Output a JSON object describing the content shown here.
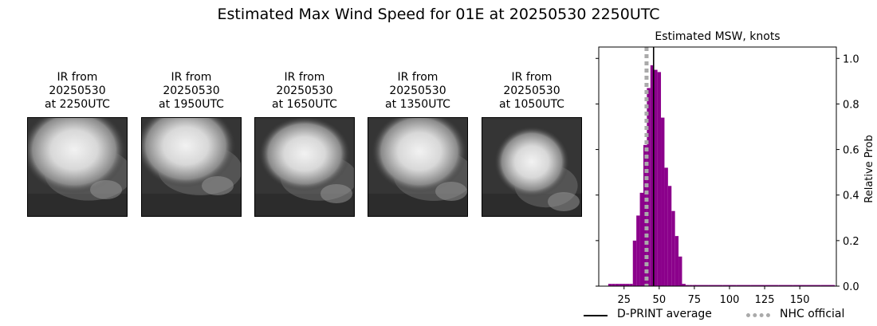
{
  "figure": {
    "title": "Estimated Max Wind Speed for 01E at 20250530 2250UTC"
  },
  "panels": [
    {
      "title": [
        "IR from",
        "20250530",
        "at 2250UTC"
      ],
      "image": "ir-satellite-image"
    },
    {
      "title": [
        "IR from",
        "20250530",
        "at 1950UTC"
      ],
      "image": "ir-satellite-image"
    },
    {
      "title": [
        "IR from",
        "20250530",
        "at 1650UTC"
      ],
      "image": "ir-satellite-image"
    },
    {
      "title": [
        "IR from",
        "20250530",
        "at 1350UTC"
      ],
      "image": "ir-satellite-image"
    },
    {
      "title": [
        "IR from",
        "20250530",
        "at 1050UTC"
      ],
      "image": "ir-satellite-image"
    }
  ],
  "chart_data": {
    "type": "bar",
    "title": "Estimated MSW, knots",
    "xlabel": "",
    "ylabel": "Relative Prob",
    "xlim": [
      7,
      176
    ],
    "ylim": [
      0,
      1.05
    ],
    "xticks": [
      25,
      50,
      75,
      100,
      125,
      150
    ],
    "yticks": [
      0.0,
      0.2,
      0.4,
      0.6,
      0.8,
      1.0
    ],
    "yaxis_side": "right",
    "bin_width": 2.5,
    "bars": {
      "x": [
        15,
        17.5,
        20,
        22.5,
        25,
        27.5,
        30,
        32.5,
        35,
        37.5,
        40,
        42.5,
        45,
        47.5,
        50,
        52.5,
        55,
        57.5,
        60,
        62.5,
        65,
        67.5,
        70,
        72.5,
        75,
        80,
        90,
        100,
        110,
        120,
        130,
        140,
        150,
        160,
        170
      ],
      "values": [
        0.01,
        0.01,
        0.01,
        0.01,
        0.01,
        0.01,
        0.01,
        0.2,
        0.31,
        0.41,
        0.62,
        0.87,
        0.97,
        0.95,
        0.94,
        0.74,
        0.52,
        0.44,
        0.33,
        0.22,
        0.13,
        0.01,
        0.005,
        0.005,
        0.005,
        0.005,
        0.005,
        0.005,
        0.005,
        0.005,
        0.005,
        0.005,
        0.005,
        0.005,
        0.005
      ],
      "color": "#8b008b"
    },
    "lines": [
      {
        "name": "D-PRINT average",
        "x": 46,
        "style": "solid",
        "color": "#000000"
      },
      {
        "name": "NHC official",
        "x": 41,
        "style": "dotted",
        "color": "#aaaaaa"
      }
    ],
    "legend": "bottom"
  }
}
